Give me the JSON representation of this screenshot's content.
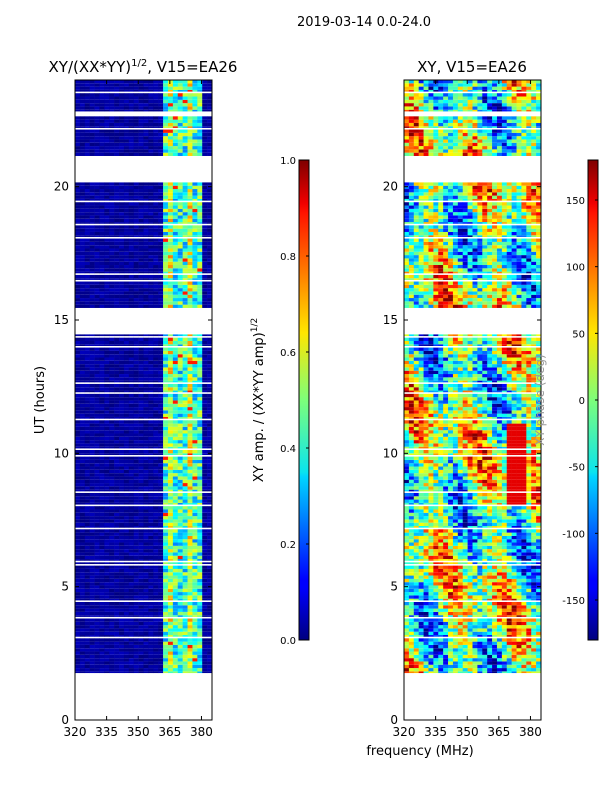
{
  "suptitle": "2019-03-14 0.0-24.0",
  "colors": {
    "masked": "#ffffff",
    "low": "#00007f",
    "axis": "#000000"
  },
  "colormap": "jet",
  "chart_data": [
    {
      "type": "heatmap",
      "title": "XY/(XX*YY)^(1/2), V15=EA26",
      "title_base": "XY/(XX*YY)",
      "title_exp": "1/2",
      "title_tail": ", V15=EA26",
      "xlabel": "",
      "ylabel": "UT (hours)",
      "xlim": [
        320,
        385
      ],
      "ylim": [
        0,
        24
      ],
      "xticks": [
        320,
        335,
        350,
        365,
        380
      ],
      "yticks": [
        0,
        5,
        10,
        15,
        20
      ],
      "data_coverage_hours": [
        1.7,
        24
      ],
      "active_band_mhz": [
        362,
        381
      ],
      "colorbar": {
        "label_base": "XY amp. / (XX*YY amp)",
        "label_exp": "1/2",
        "range": [
          0.0,
          1.0
        ],
        "ticks": [
          "0.0",
          "0.2",
          "0.4",
          "0.6",
          "0.8",
          "1.0"
        ]
      }
    },
    {
      "type": "heatmap",
      "title": "XY, V15=EA26",
      "xlabel": "frequency (MHz)",
      "ylabel": "",
      "xlim": [
        320,
        385
      ],
      "ylim": [
        0,
        24
      ],
      "xticks": [
        320,
        335,
        350,
        365,
        380
      ],
      "yticks": [
        0,
        5,
        10,
        15,
        20
      ],
      "data_coverage_hours": [
        1.7,
        24
      ],
      "colorbar": {
        "label": "XY phase (deg)",
        "range": [
          -180,
          180
        ],
        "ticks": [
          "-150",
          "-100",
          "-50",
          "0",
          "50",
          "100",
          "150"
        ]
      }
    }
  ]
}
